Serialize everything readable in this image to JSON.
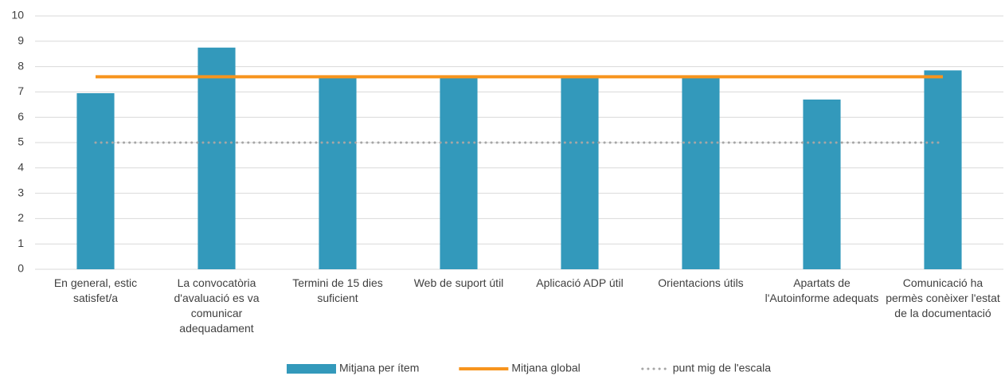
{
  "chart_data": {
    "type": "bar",
    "categories": [
      "En general, estic satisfet/a",
      "La convocatòria d'avaluació es va comunicar adequadament",
      "Termini de 15 dies suficient",
      "Web de suport útil",
      "Aplicació ADP útil",
      "Orientacions útils",
      "Apartats de l'Autoinforme adequats",
      "Comunicació ha permès conèixer l'estat de la documentació"
    ],
    "series": [
      {
        "name": "Mitjana per ítem",
        "type": "bar",
        "color": "#3399bb",
        "values": [
          6.95,
          8.75,
          7.6,
          7.6,
          7.6,
          7.6,
          6.7,
          7.85
        ]
      },
      {
        "name": "Mitjana global",
        "type": "line",
        "color": "#f7941d",
        "values": [
          7.6,
          7.6,
          7.6,
          7.6,
          7.6,
          7.6,
          7.6,
          7.6
        ]
      },
      {
        "name": "punt mig de l'escala",
        "type": "dotted",
        "color": "#a6a6a6",
        "values": [
          5,
          5,
          5,
          5,
          5,
          5,
          5,
          5
        ]
      }
    ],
    "ylim": [
      0,
      10
    ],
    "yticks": [
      0,
      1,
      2,
      3,
      4,
      5,
      6,
      7,
      8,
      9,
      10
    ],
    "grid": true,
    "legend": "bottom"
  }
}
